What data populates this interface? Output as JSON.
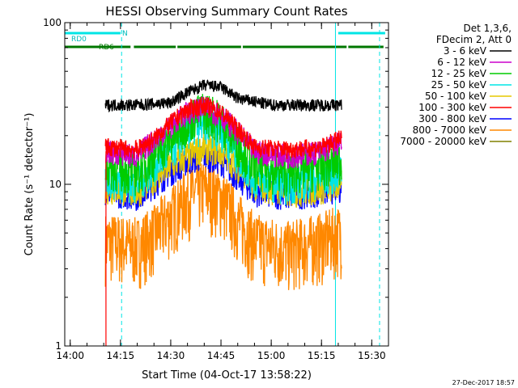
{
  "chart_data": {
    "type": "line",
    "title": "HESSI Observing Summary Count Rates",
    "xlabel": "Start Time (04-Oct-17 13:58:22)",
    "ylabel": "Count Rate (s⁻¹ detector⁻¹)",
    "x_scale": "time",
    "y_scale": "log",
    "xlim": [
      "13:58:22",
      "15:35:00"
    ],
    "ylim": [
      1,
      100
    ],
    "x_ticks": [
      "14:00",
      "14:15",
      "14:30",
      "14:45",
      "15:00",
      "15:15",
      "15:30"
    ],
    "y_ticks": [
      "1",
      "10",
      "100"
    ],
    "legend_header": [
      "Det 1,3,6,",
      "FDecim 2, Att 0"
    ],
    "legend_position": "top-right outside",
    "grid": false,
    "data_start": "14:10:30",
    "data_end": "15:21:00",
    "series": [
      {
        "name": "3 - 6 keV",
        "color": "#000000",
        "points": [
          [
            "14:11",
            31
          ],
          [
            "14:20",
            31
          ],
          [
            "14:30",
            32
          ],
          [
            "14:35",
            37
          ],
          [
            "14:40",
            41
          ],
          [
            "14:45",
            40
          ],
          [
            "14:50",
            34
          ],
          [
            "15:00",
            31
          ],
          [
            "15:10",
            31
          ],
          [
            "15:20",
            31
          ]
        ]
      },
      {
        "name": "6 - 12 keV",
        "color": "#cc00cc",
        "points": [
          [
            "14:11",
            16
          ],
          [
            "14:20",
            15
          ],
          [
            "14:25",
            19
          ],
          [
            "14:30",
            23
          ],
          [
            "14:35",
            28
          ],
          [
            "14:40",
            30
          ],
          [
            "14:45",
            27
          ],
          [
            "14:50",
            21
          ],
          [
            "14:55",
            16
          ],
          [
            "15:05",
            15
          ],
          [
            "15:15",
            16
          ],
          [
            "15:20",
            18
          ]
        ]
      },
      {
        "name": "12 - 25 keV",
        "color": "#00cc00",
        "points": [
          [
            "14:11",
            13
          ],
          [
            "14:20",
            12
          ],
          [
            "14:25",
            15
          ],
          [
            "14:30",
            19
          ],
          [
            "14:35",
            25
          ],
          [
            "14:40",
            29
          ],
          [
            "14:45",
            25
          ],
          [
            "14:50",
            18
          ],
          [
            "14:55",
            13
          ],
          [
            "15:05",
            12
          ],
          [
            "15:15",
            13
          ],
          [
            "15:20",
            14
          ]
        ]
      },
      {
        "name": "25 - 50 keV",
        "color": "#00e5e5",
        "points": [
          [
            "14:11",
            11
          ],
          [
            "14:20",
            10
          ],
          [
            "14:25",
            13
          ],
          [
            "14:30",
            16
          ],
          [
            "14:35",
            21
          ],
          [
            "14:40",
            24
          ],
          [
            "14:45",
            21
          ],
          [
            "14:50",
            15
          ],
          [
            "14:55",
            11
          ],
          [
            "15:05",
            10
          ],
          [
            "15:15",
            11
          ],
          [
            "15:20",
            12
          ]
        ]
      },
      {
        "name": "50 - 100 keV",
        "color": "#e5c800",
        "points": [
          [
            "14:11",
            9.5
          ],
          [
            "14:20",
            9
          ],
          [
            "14:25",
            11
          ],
          [
            "14:30",
            13
          ],
          [
            "14:35",
            15
          ],
          [
            "14:40",
            17
          ],
          [
            "14:45",
            16
          ],
          [
            "14:50",
            13
          ],
          [
            "14:55",
            10
          ],
          [
            "15:05",
            9
          ],
          [
            "15:15",
            9.5
          ],
          [
            "15:20",
            10
          ]
        ]
      },
      {
        "name": "100 - 300 keV",
        "color": "#ff0000",
        "points": [
          [
            "14:11",
            17
          ],
          [
            "14:20",
            16.5
          ],
          [
            "14:25",
            19
          ],
          [
            "14:30",
            24
          ],
          [
            "14:35",
            29
          ],
          [
            "14:40",
            31
          ],
          [
            "14:45",
            28
          ],
          [
            "14:50",
            22
          ],
          [
            "14:55",
            17
          ],
          [
            "15:05",
            16.5
          ],
          [
            "15:15",
            17
          ],
          [
            "15:20",
            19
          ]
        ]
      },
      {
        "name": "300 - 800 keV",
        "color": "#0000ff",
        "points": [
          [
            "14:11",
            9
          ],
          [
            "14:20",
            8.5
          ],
          [
            "14:25",
            10
          ],
          [
            "14:30",
            12
          ],
          [
            "14:35",
            14
          ],
          [
            "14:40",
            15
          ],
          [
            "14:45",
            14
          ],
          [
            "14:50",
            11
          ],
          [
            "14:55",
            9
          ],
          [
            "15:05",
            8.5
          ],
          [
            "15:15",
            9
          ],
          [
            "15:20",
            9.5
          ]
        ]
      },
      {
        "name": "800 - 7000 keV",
        "color": "#ff8800",
        "points": [
          [
            "14:11",
            4.5
          ],
          [
            "14:20",
            4.2
          ],
          [
            "14:25",
            5
          ],
          [
            "14:30",
            6.5
          ],
          [
            "14:35",
            8.5
          ],
          [
            "14:40",
            9.5
          ],
          [
            "14:45",
            8.5
          ],
          [
            "14:50",
            6
          ],
          [
            "14:55",
            4.5
          ],
          [
            "15:05",
            4
          ],
          [
            "15:15",
            4.5
          ],
          [
            "15:20",
            5
          ]
        ]
      },
      {
        "name": "7000 - 20000 keV",
        "color": "#808000",
        "points": []
      }
    ],
    "annotations": {
      "bars": [
        {
          "label": "RD0",
          "color": "#00e5e5",
          "level": "upper",
          "segments": [
            [
              "13:58:22",
              "14:15:00"
            ],
            [
              "15:20:00",
              "15:34:00"
            ]
          ]
        },
        {
          "label": "N",
          "color": "#00e5e5",
          "level": "upper-tick",
          "segments": []
        },
        {
          "label": "RD6",
          "color": "#007700",
          "level": "lower",
          "segments": [
            [
              "13:58:22",
              "14:18:00"
            ],
            [
              "14:19:00",
              "14:31:30"
            ],
            [
              "14:32:00",
              "14:51:00"
            ],
            [
              "14:51:30",
              "15:22:30"
            ],
            [
              "15:23:00",
              "15:33:30"
            ]
          ]
        }
      ],
      "vlines": [
        {
          "t": "13:58:22",
          "style": "solid",
          "color": "#00e5e5"
        },
        {
          "t": "14:15:20",
          "style": "dashed",
          "color": "#00e5e5"
        },
        {
          "t": "15:19:10",
          "style": "solid",
          "color": "#00e5e5"
        },
        {
          "t": "15:32:20",
          "style": "dashed",
          "color": "#00e5e5"
        }
      ],
      "red_spike_at": "14:10:40"
    }
  },
  "footer": {
    "timestamp": "27-Dec-2017 18:57"
  }
}
